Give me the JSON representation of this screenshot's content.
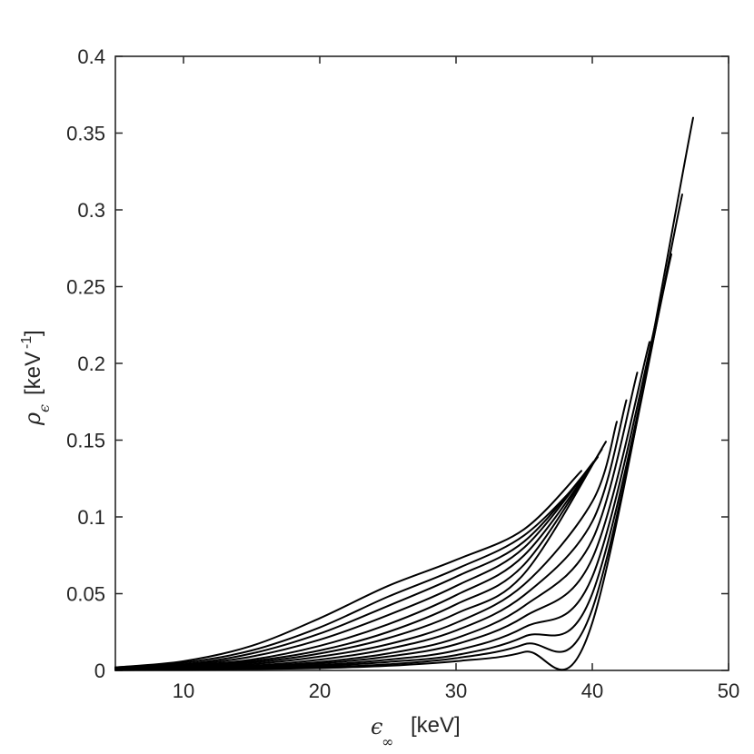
{
  "chart_data": {
    "type": "line",
    "title": "",
    "xlabel": {
      "symbol": "ϵ",
      "subscript": "∞",
      "unit": "[keV]"
    },
    "ylabel": {
      "symbol": "ρ",
      "subscript": "ϵ",
      "unit": "[keV",
      "unit_superscript": "-1",
      "unit_close": "]"
    },
    "xlim": [
      5,
      50
    ],
    "ylim": [
      0,
      0.4
    ],
    "xticks": [
      10,
      20,
      30,
      40,
      50
    ],
    "xtick_labels": [
      "10",
      "20",
      "30",
      "40",
      "50"
    ],
    "yticks": [
      0,
      0.05,
      0.1,
      0.15,
      0.2,
      0.25,
      0.3,
      0.35,
      0.4
    ],
    "ytick_labels": [
      "0",
      "0.05",
      "0.1",
      "0.15",
      "0.2",
      "0.25",
      "0.3",
      "0.35",
      "0.4"
    ],
    "grid": false,
    "legend": "none",
    "line_color": "#000000",
    "series": [
      {
        "x": [
          5,
          10,
          15,
          20,
          25,
          30,
          35,
          39.2
        ],
        "y": [
          0.002,
          0.006,
          0.016,
          0.034,
          0.055,
          0.072,
          0.092,
          0.13
        ]
      },
      {
        "x": [
          5,
          10,
          15,
          20,
          25,
          30,
          35,
          39.5
        ],
        "y": [
          0.002,
          0.005,
          0.013,
          0.028,
          0.048,
          0.066,
          0.088,
          0.127
        ]
      },
      {
        "x": [
          5,
          10,
          15,
          20,
          25,
          30,
          35,
          39.8
        ],
        "y": [
          0.0015,
          0.004,
          0.011,
          0.024,
          0.042,
          0.061,
          0.084,
          0.132
        ]
      },
      {
        "x": [
          5,
          10,
          15,
          20,
          25,
          30,
          35,
          40.1
        ],
        "y": [
          0.0015,
          0.0035,
          0.009,
          0.02,
          0.036,
          0.055,
          0.08,
          0.136
        ]
      },
      {
        "x": [
          5,
          10,
          15,
          20,
          25,
          30,
          35,
          40.4
        ],
        "y": [
          0.001,
          0.003,
          0.007,
          0.016,
          0.03,
          0.049,
          0.075,
          0.139
        ]
      },
      {
        "x": [
          5,
          10,
          15,
          20,
          25,
          30,
          35,
          40.7
        ],
        "y": [
          0.001,
          0.0025,
          0.006,
          0.013,
          0.025,
          0.043,
          0.069,
          0.144
        ]
      },
      {
        "x": [
          5,
          10,
          15,
          20,
          25,
          30,
          35,
          41
        ],
        "y": [
          0.001,
          0.002,
          0.005,
          0.011,
          0.021,
          0.037,
          0.063,
          0.149
        ]
      },
      {
        "x": [
          5,
          10,
          15,
          20,
          25,
          30,
          35,
          40,
          41.8
        ],
        "y": [
          0.0008,
          0.0018,
          0.004,
          0.009,
          0.017,
          0.031,
          0.056,
          0.11,
          0.162
        ]
      },
      {
        "x": [
          5,
          10,
          15,
          20,
          25,
          30,
          35,
          40,
          42.5
        ],
        "y": [
          0.0006,
          0.0015,
          0.003,
          0.007,
          0.014,
          0.026,
          0.049,
          0.097,
          0.176
        ]
      },
      {
        "x": [
          5,
          10,
          15,
          20,
          25,
          30,
          35,
          40,
          43.3
        ],
        "y": [
          0.0005,
          0.0012,
          0.0025,
          0.0055,
          0.011,
          0.021,
          0.042,
          0.085,
          0.194
        ]
      },
      {
        "x": [
          5,
          10,
          15,
          20,
          25,
          30,
          35,
          40,
          44.2
        ],
        "y": [
          0.0004,
          0.001,
          0.002,
          0.0045,
          0.009,
          0.017,
          0.035,
          0.073,
          0.214
        ]
      },
      {
        "x": [
          5,
          10,
          15,
          20,
          25,
          30,
          35,
          40,
          45
        ],
        "y": [
          0.0003,
          0.0008,
          0.0016,
          0.0035,
          0.007,
          0.013,
          0.028,
          0.061,
          0.24
        ]
      },
      {
        "x": [
          5,
          10,
          15,
          20,
          25,
          30,
          35,
          40,
          45.8
        ],
        "y": [
          0.0003,
          0.0006,
          0.0012,
          0.0028,
          0.0055,
          0.01,
          0.022,
          0.05,
          0.271
        ]
      },
      {
        "x": [
          5,
          10,
          15,
          20,
          25,
          30,
          35,
          40,
          46.6
        ],
        "y": [
          0.0002,
          0.0005,
          0.001,
          0.002,
          0.004,
          0.008,
          0.017,
          0.04,
          0.31
        ]
      },
      {
        "x": [
          5,
          10,
          15,
          20,
          25,
          30,
          35,
          40,
          47.4
        ],
        "y": [
          0.0002,
          0.0004,
          0.0008,
          0.0015,
          0.003,
          0.006,
          0.012,
          0.031,
          0.36
        ]
      }
    ]
  }
}
